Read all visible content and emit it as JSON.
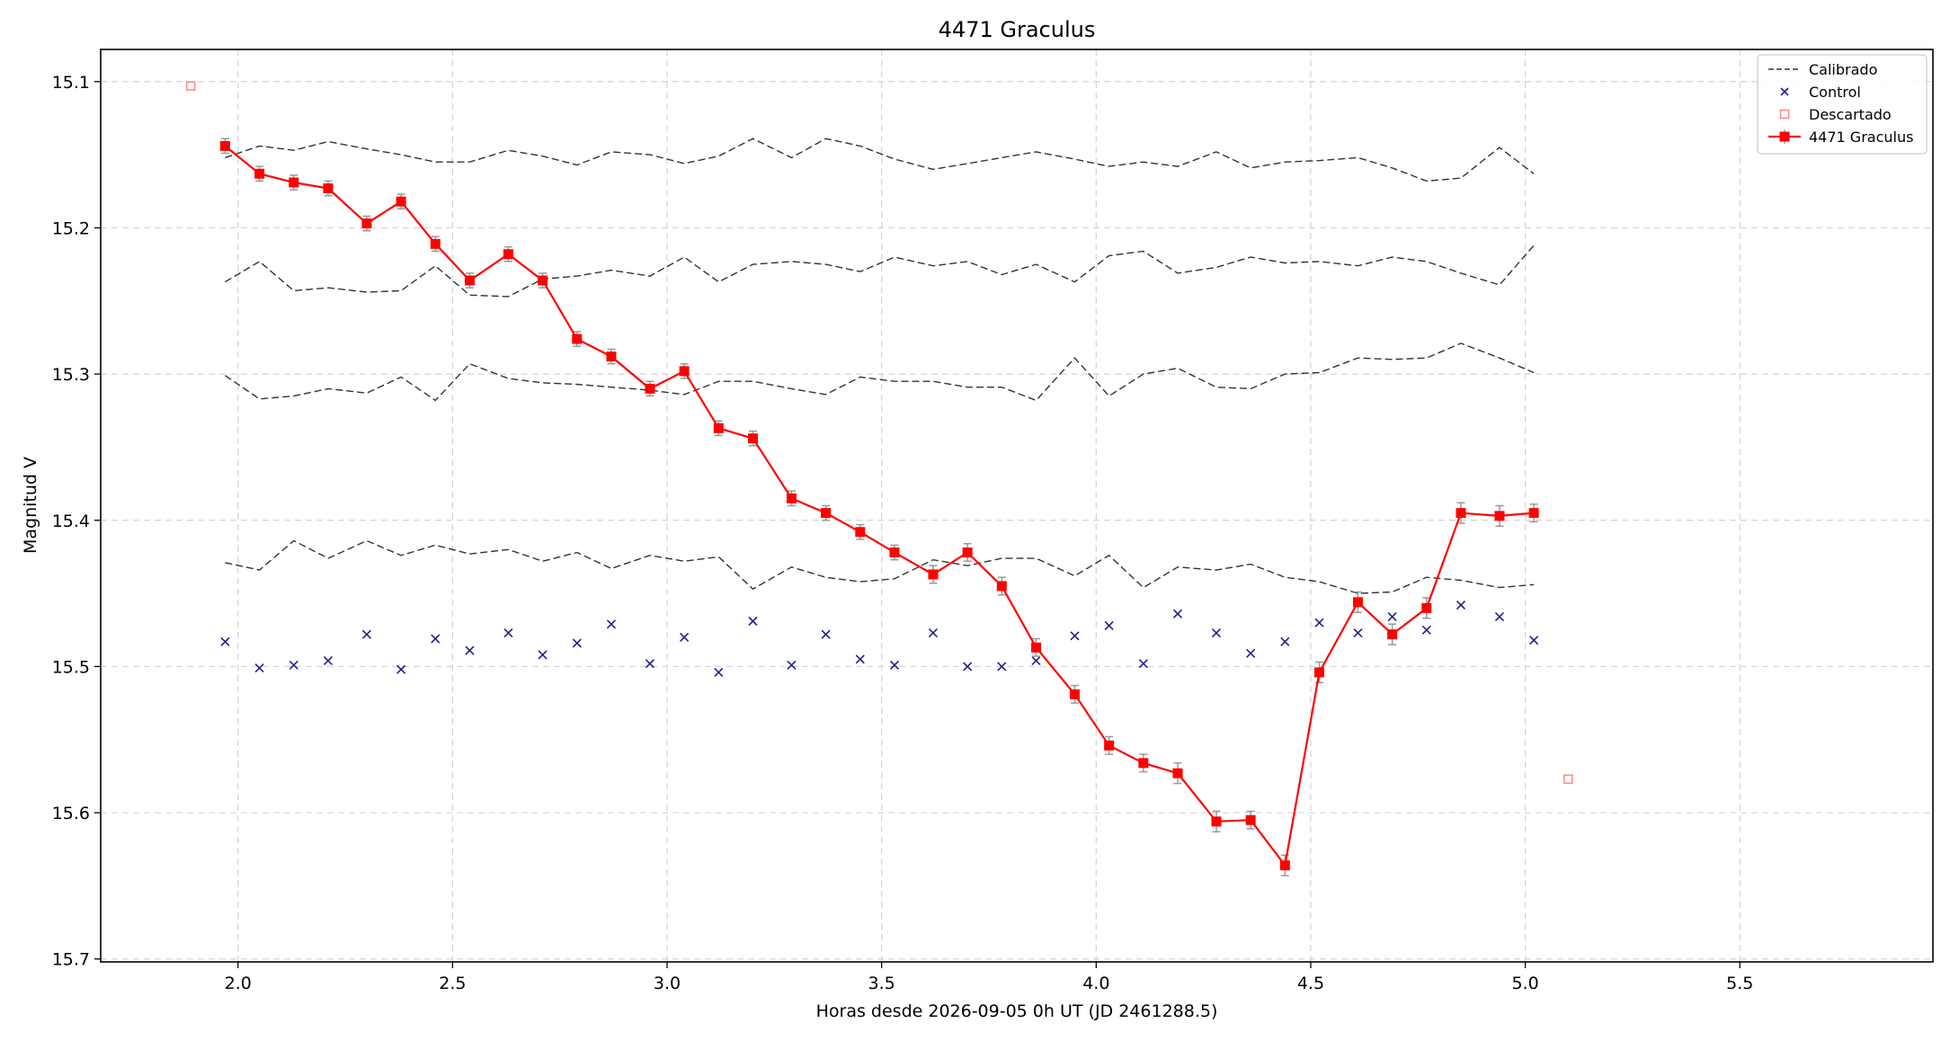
{
  "chart_data": {
    "type": "line",
    "title": "4471 Graculus",
    "xlabel": "Horas desde 2026-09-05 0h UT (JD 2461288.5)",
    "ylabel": "Magnitud V",
    "xlim": [
      1.68,
      5.95
    ],
    "ylim": [
      15.702,
      15.078
    ],
    "y_inverted": true,
    "grid": true,
    "legend_position": "upper right",
    "x_ticks": [
      {
        "value": 2.0,
        "label": "2.0"
      },
      {
        "value": 2.5,
        "label": "2.5"
      },
      {
        "value": 3.0,
        "label": "3.0"
      },
      {
        "value": 3.5,
        "label": "3.5"
      },
      {
        "value": 4.0,
        "label": "4.0"
      },
      {
        "value": 4.5,
        "label": "4.5"
      },
      {
        "value": 5.0,
        "label": "5.0"
      },
      {
        "value": 5.5,
        "label": "5.5"
      }
    ],
    "y_ticks": [
      {
        "value": 15.1,
        "label": "15.1"
      },
      {
        "value": 15.2,
        "label": "15.2"
      },
      {
        "value": 15.3,
        "label": "15.3"
      },
      {
        "value": 15.4,
        "label": "15.4"
      },
      {
        "value": 15.5,
        "label": "15.5"
      },
      {
        "value": 15.6,
        "label": "15.6"
      },
      {
        "value": 15.7,
        "label": "15.7"
      }
    ],
    "legend": [
      {
        "label": "Calibrado",
        "style": "dashed",
        "color": "#333333"
      },
      {
        "label": "Control",
        "style": "x",
        "color": "#1f1f8f"
      },
      {
        "label": "Descartado",
        "style": "open-square",
        "color": "#ff7f7f"
      },
      {
        "label": "4471 Graculus",
        "style": "line-square",
        "color": "#ff0000"
      }
    ],
    "x": [
      1.97,
      2.05,
      2.13,
      2.21,
      2.3,
      2.38,
      2.46,
      2.54,
      2.63,
      2.71,
      2.79,
      2.87,
      2.96,
      3.04,
      3.12,
      3.2,
      3.29,
      3.37,
      3.45,
      3.53,
      3.62,
      3.7,
      3.78,
      3.86,
      3.95,
      4.03,
      4.11,
      4.19,
      4.28,
      4.36,
      4.44,
      4.52,
      4.61,
      4.69,
      4.77,
      4.85,
      4.94,
      5.02
    ],
    "series": [
      {
        "name": "4471 Graculus",
        "color": "#ff0000",
        "values": [
          15.144,
          15.163,
          15.169,
          15.173,
          15.197,
          15.182,
          15.211,
          15.236,
          15.218,
          15.236,
          15.276,
          15.288,
          15.31,
          15.298,
          15.337,
          15.344,
          15.385,
          15.395,
          15.408,
          15.422,
          15.437,
          15.422,
          15.445,
          15.487,
          15.519,
          15.554,
          15.566,
          15.573,
          15.606,
          15.605,
          15.636,
          15.504,
          15.456,
          15.478,
          15.46,
          15.395,
          15.397,
          15.395
        ],
        "errors": [
          0.005,
          0.005,
          0.005,
          0.005,
          0.005,
          0.005,
          0.005,
          0.005,
          0.005,
          0.005,
          0.005,
          0.005,
          0.005,
          0.005,
          0.005,
          0.005,
          0.005,
          0.005,
          0.005,
          0.005,
          0.006,
          0.006,
          0.006,
          0.006,
          0.006,
          0.006,
          0.006,
          0.007,
          0.007,
          0.006,
          0.007,
          0.007,
          0.007,
          0.007,
          0.007,
          0.007,
          0.007,
          0.006
        ]
      },
      {
        "name": "Calibrado",
        "color": "#333333",
        "values": [
          15.152,
          15.144,
          15.147,
          15.141,
          15.146,
          15.15,
          15.155,
          15.155,
          15.147,
          15.151,
          15.157,
          15.148,
          15.15,
          15.156,
          15.151,
          15.139,
          15.152,
          15.139,
          15.144,
          15.153,
          15.16,
          15.156,
          15.152,
          15.148,
          15.153,
          15.158,
          15.155,
          15.158,
          15.148,
          15.159,
          15.155,
          15.154,
          15.152,
          15.159,
          15.168,
          15.166,
          15.145,
          15.163
        ]
      },
      {
        "name": "Calibrado",
        "color": "#333333",
        "values": [
          15.237,
          15.223,
          15.243,
          15.241,
          15.244,
          15.243,
          15.226,
          15.246,
          15.247,
          15.235,
          15.233,
          15.229,
          15.233,
          15.22,
          15.237,
          15.225,
          15.223,
          15.225,
          15.23,
          15.22,
          15.226,
          15.223,
          15.232,
          15.225,
          15.237,
          15.219,
          15.216,
          15.231,
          15.227,
          15.22,
          15.224,
          15.223,
          15.226,
          15.22,
          15.223,
          15.231,
          15.239,
          15.212
        ]
      },
      {
        "name": "Calibrado",
        "color": "#333333",
        "values": [
          15.301,
          15.317,
          15.315,
          15.31,
          15.313,
          15.302,
          15.318,
          15.293,
          15.303,
          15.306,
          15.307,
          15.309,
          15.311,
          15.314,
          15.305,
          15.305,
          15.31,
          15.314,
          15.302,
          15.305,
          15.305,
          15.309,
          15.309,
          15.318,
          15.289,
          15.315,
          15.3,
          15.296,
          15.309,
          15.31,
          15.3,
          15.299,
          15.289,
          15.29,
          15.289,
          15.279,
          15.289,
          15.299
        ]
      },
      {
        "name": "Calibrado",
        "color": "#333333",
        "values": [
          15.429,
          15.434,
          15.414,
          15.426,
          15.414,
          15.424,
          15.417,
          15.423,
          15.42,
          15.428,
          15.422,
          15.433,
          15.424,
          15.428,
          15.425,
          15.447,
          15.432,
          15.439,
          15.442,
          15.44,
          15.427,
          15.431,
          15.426,
          15.426,
          15.438,
          15.424,
          15.446,
          15.432,
          15.434,
          15.43,
          15.439,
          15.442,
          15.45,
          15.449,
          15.439,
          15.441,
          15.446,
          15.444
        ]
      },
      {
        "name": "Control",
        "color": "#1f1f8f",
        "marker": "x",
        "values": [
          15.483,
          15.501,
          15.499,
          15.496,
          15.478,
          15.502,
          15.481,
          15.489,
          15.477,
          15.492,
          15.484,
          15.471,
          15.498,
          15.48,
          15.504,
          15.469,
          15.499,
          15.478,
          15.495,
          15.499,
          15.477,
          15.5,
          15.5,
          15.496,
          15.479,
          15.472,
          15.498,
          15.464,
          15.477,
          15.491,
          15.483,
          15.47,
          15.477,
          15.466,
          15.475,
          15.458,
          15.466,
          15.482
        ]
      },
      {
        "name": "Descartado",
        "color": "#ff7f7f",
        "marker": "open-square",
        "x": [
          1.89,
          5.1
        ],
        "values": [
          15.103,
          15.577
        ]
      }
    ]
  }
}
